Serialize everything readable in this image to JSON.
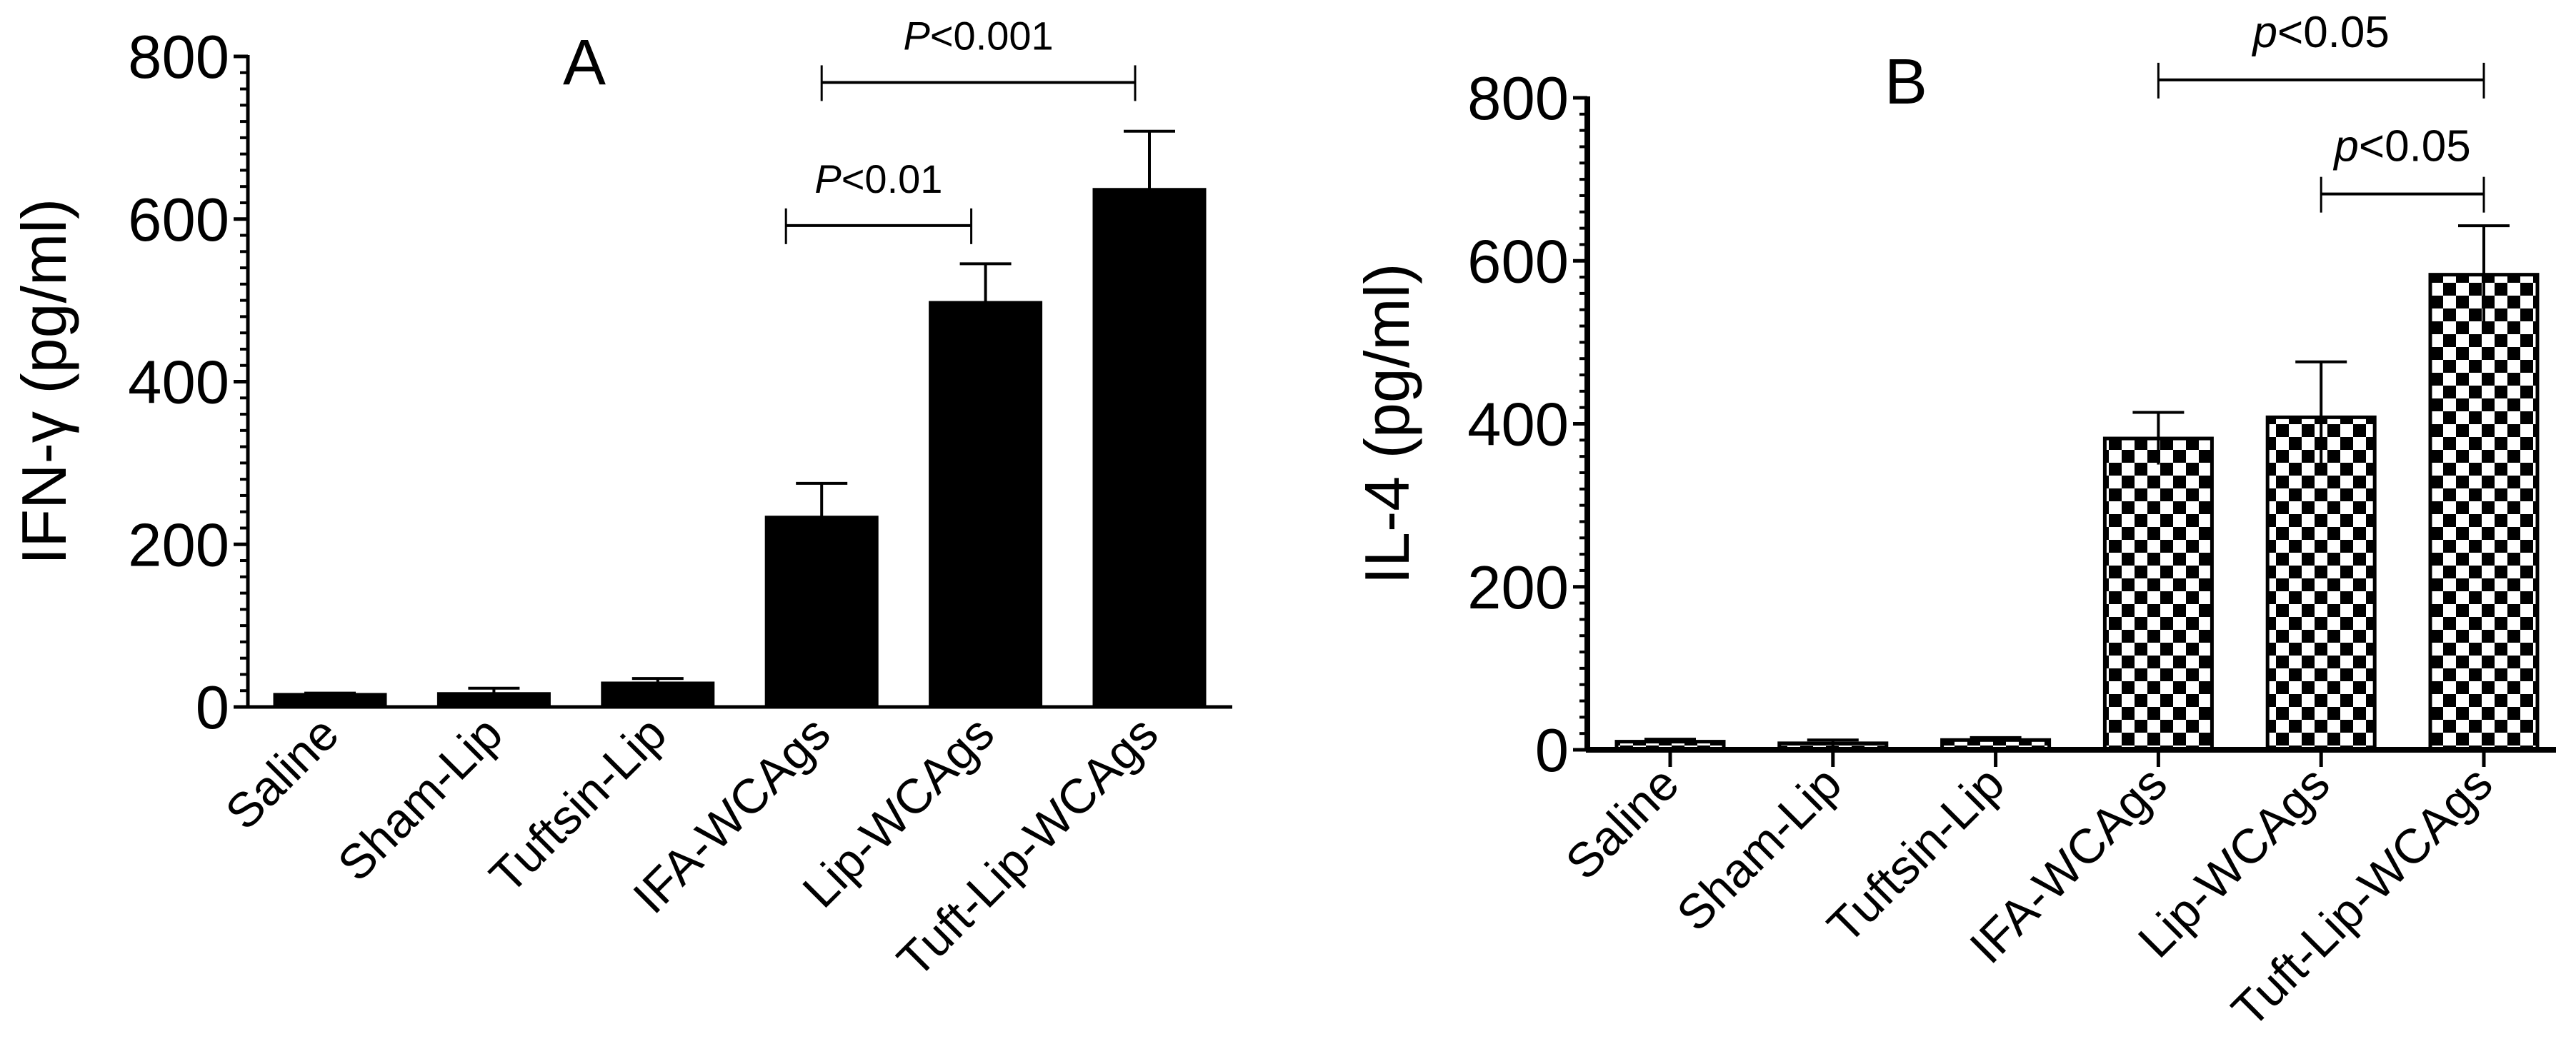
{
  "chart_data": [
    {
      "type": "bar",
      "panel_label": "A",
      "ylabel": "IFN-γ (pg/ml)",
      "xlabel": "",
      "ylim": [
        0,
        800
      ],
      "yticks": [
        0,
        200,
        400,
        600,
        800
      ],
      "ytick_labels": [
        "0",
        "200",
        "400",
        "600",
        "800"
      ],
      "minor_tick_step": 20,
      "grid": false,
      "fill": "solid",
      "bar_color": "#000000",
      "categories": [
        "Saline",
        "Sham-Lip",
        "Tuftsin-Lip",
        "IFA-WCAgs",
        "Lip-WCAgs",
        "Tuft-Lip-WCAgs"
      ],
      "values": [
        15,
        16,
        29,
        233,
        497,
        636
      ],
      "error_upper": [
        17,
        23,
        35,
        275,
        545,
        708
      ],
      "significance": [
        {
          "from": "IFA-WCAgs",
          "to": "Tuft-Lip-WCAgs",
          "label_italic": "P",
          "label_rest": "<0.001",
          "level": 768
        },
        {
          "from": "IFA-WCAgs",
          "to": "Lip-WCAgs",
          "label_italic": "P",
          "label_rest": "<0.01",
          "level": 592
        }
      ]
    },
    {
      "type": "bar",
      "panel_label": "B",
      "ylabel": "IL-4 (pg/ml)",
      "xlabel": "",
      "ylim": [
        0,
        800
      ],
      "yticks": [
        0,
        200,
        400,
        600,
        800
      ],
      "ytick_labels": [
        "0",
        "200",
        "400",
        "600",
        "800"
      ],
      "minor_tick_step": 20,
      "grid": false,
      "fill": "checkerboard",
      "bar_color": "#000000",
      "categories": [
        "Saline",
        "Sham-Lip",
        "Tuftsin-Lip",
        "IFA-WCAgs",
        "Lip-WCAgs",
        "Tuft-Lip-WCAgs"
      ],
      "values": [
        10,
        8,
        12,
        382,
        408,
        583
      ],
      "error_upper": [
        13,
        12,
        15,
        414,
        476,
        643
      ],
      "error_lower": [
        7,
        5,
        9,
        350,
        341,
        520
      ],
      "significance": [
        {
          "from": "IFA-WCAgs",
          "to": "Tuft-Lip-WCAgs",
          "label_italic": "p",
          "label_rest": "<0.05",
          "level": 822
        },
        {
          "from": "Lip-WCAgs",
          "to": "Tuft-Lip-WCAgs",
          "label_italic": "p",
          "label_rest": "<0.05",
          "level": 682
        }
      ]
    }
  ]
}
